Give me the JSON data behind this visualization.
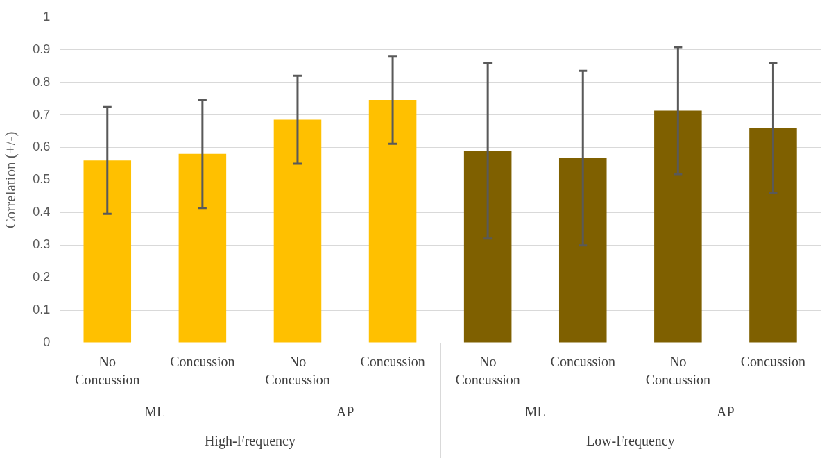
{
  "chart_data": {
    "type": "bar",
    "ylabel": "Correlation (+/-)",
    "categories": [
      "No Concussion",
      "Concussion",
      "No Concussion",
      "Concussion",
      "No Concussion",
      "Concussion",
      "No Concussion",
      "Concussion"
    ],
    "values": [
      0.56,
      0.58,
      0.685,
      0.746,
      0.59,
      0.567,
      0.713,
      0.66
    ],
    "colors": [
      "#ffc000",
      "#ffc000",
      "#ffc000",
      "#ffc000",
      "#7f6000",
      "#7f6000",
      "#7f6000",
      "#7f6000"
    ],
    "errors": [
      0.164,
      0.166,
      0.135,
      0.135,
      0.27,
      0.268,
      0.195,
      0.2
    ],
    "annotations": [
      "ML",
      "AP",
      "ML",
      "AP",
      "High-Frequency",
      "Low-Frequency"
    ],
    "ylim": [
      0,
      1
    ],
    "yticks": [
      0,
      0.1,
      0.2,
      0.3,
      0.4,
      0.5,
      0.6,
      0.7,
      0.8,
      0.9,
      1
    ],
    "grid": "y",
    "legend": false
  }
}
